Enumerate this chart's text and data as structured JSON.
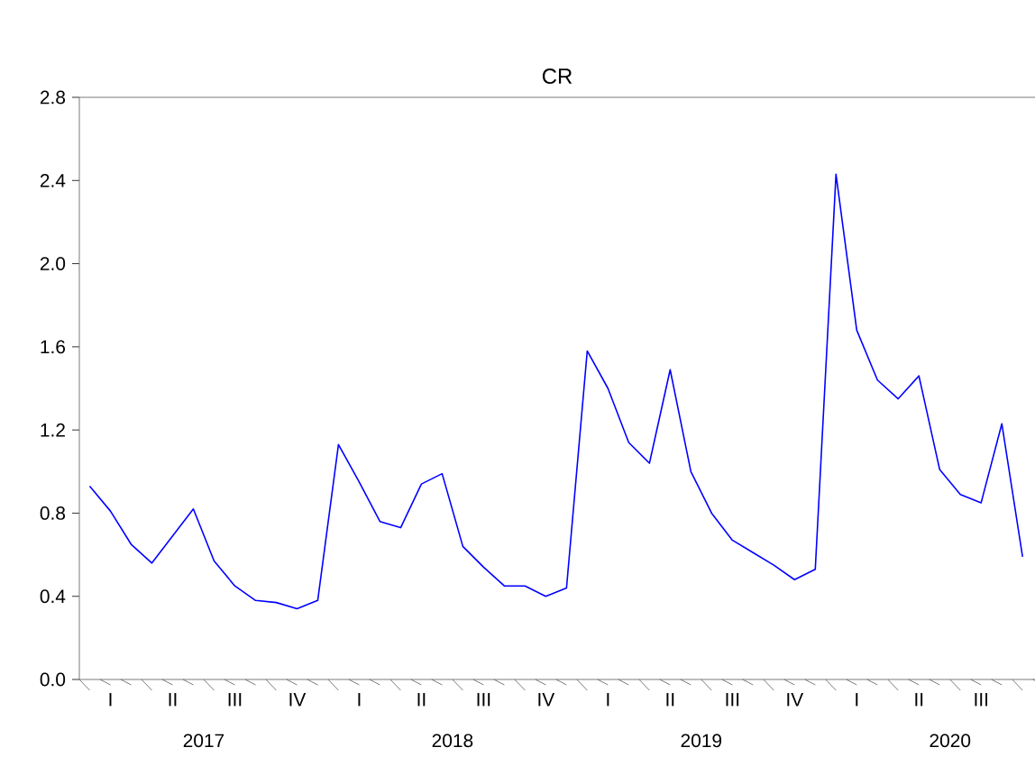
{
  "chart_data": {
    "type": "line",
    "title": "CR",
    "categories": [
      null,
      "I",
      null,
      null,
      "II",
      null,
      null,
      "III",
      null,
      null,
      "IV",
      null,
      null,
      "I",
      null,
      null,
      "II",
      null,
      null,
      "III",
      null,
      null,
      "IV",
      null,
      null,
      "I",
      null,
      null,
      "II",
      null,
      null,
      "III",
      null,
      null,
      "IV",
      null,
      null,
      "I",
      null,
      null,
      "II",
      null,
      null,
      "III",
      null,
      null
    ],
    "series": [
      {
        "color": "#0000ff",
        "values": [
          0.93,
          0.81,
          0.65,
          0.56,
          0.69,
          0.82,
          0.57,
          0.45,
          0.38,
          0.37,
          0.34,
          0.38,
          1.13,
          0.95,
          0.76,
          0.73,
          0.94,
          0.99,
          0.64,
          0.54,
          0.45,
          0.45,
          0.4,
          0.44,
          1.58,
          1.4,
          1.14,
          1.04,
          1.49,
          1.0,
          0.8,
          0.67,
          0.61,
          0.55,
          0.48,
          0.53,
          2.43,
          1.68,
          1.44,
          1.35,
          1.46,
          1.01,
          0.89,
          0.85,
          1.23,
          0.59
        ]
      }
    ],
    "annotations": [
      "2017",
      "2018",
      "2019",
      "2020"
    ],
    "ylim": [
      0,
      2.8
    ],
    "yticks": [
      {
        "value": 0,
        "label": "0.0"
      },
      {
        "value": 0.4,
        "label": "0.4"
      },
      {
        "value": 0.8,
        "label": "0.8"
      },
      {
        "value": 1.2,
        "label": "1.2"
      },
      {
        "value": 1.6,
        "label": "1.6"
      },
      {
        "value": 2.0,
        "label": "2.0"
      },
      {
        "value": 2.4,
        "label": "2.4"
      },
      {
        "value": 2.8,
        "label": "2.8"
      }
    ],
    "grid": false,
    "marker": "none",
    "line_style": "solid"
  }
}
